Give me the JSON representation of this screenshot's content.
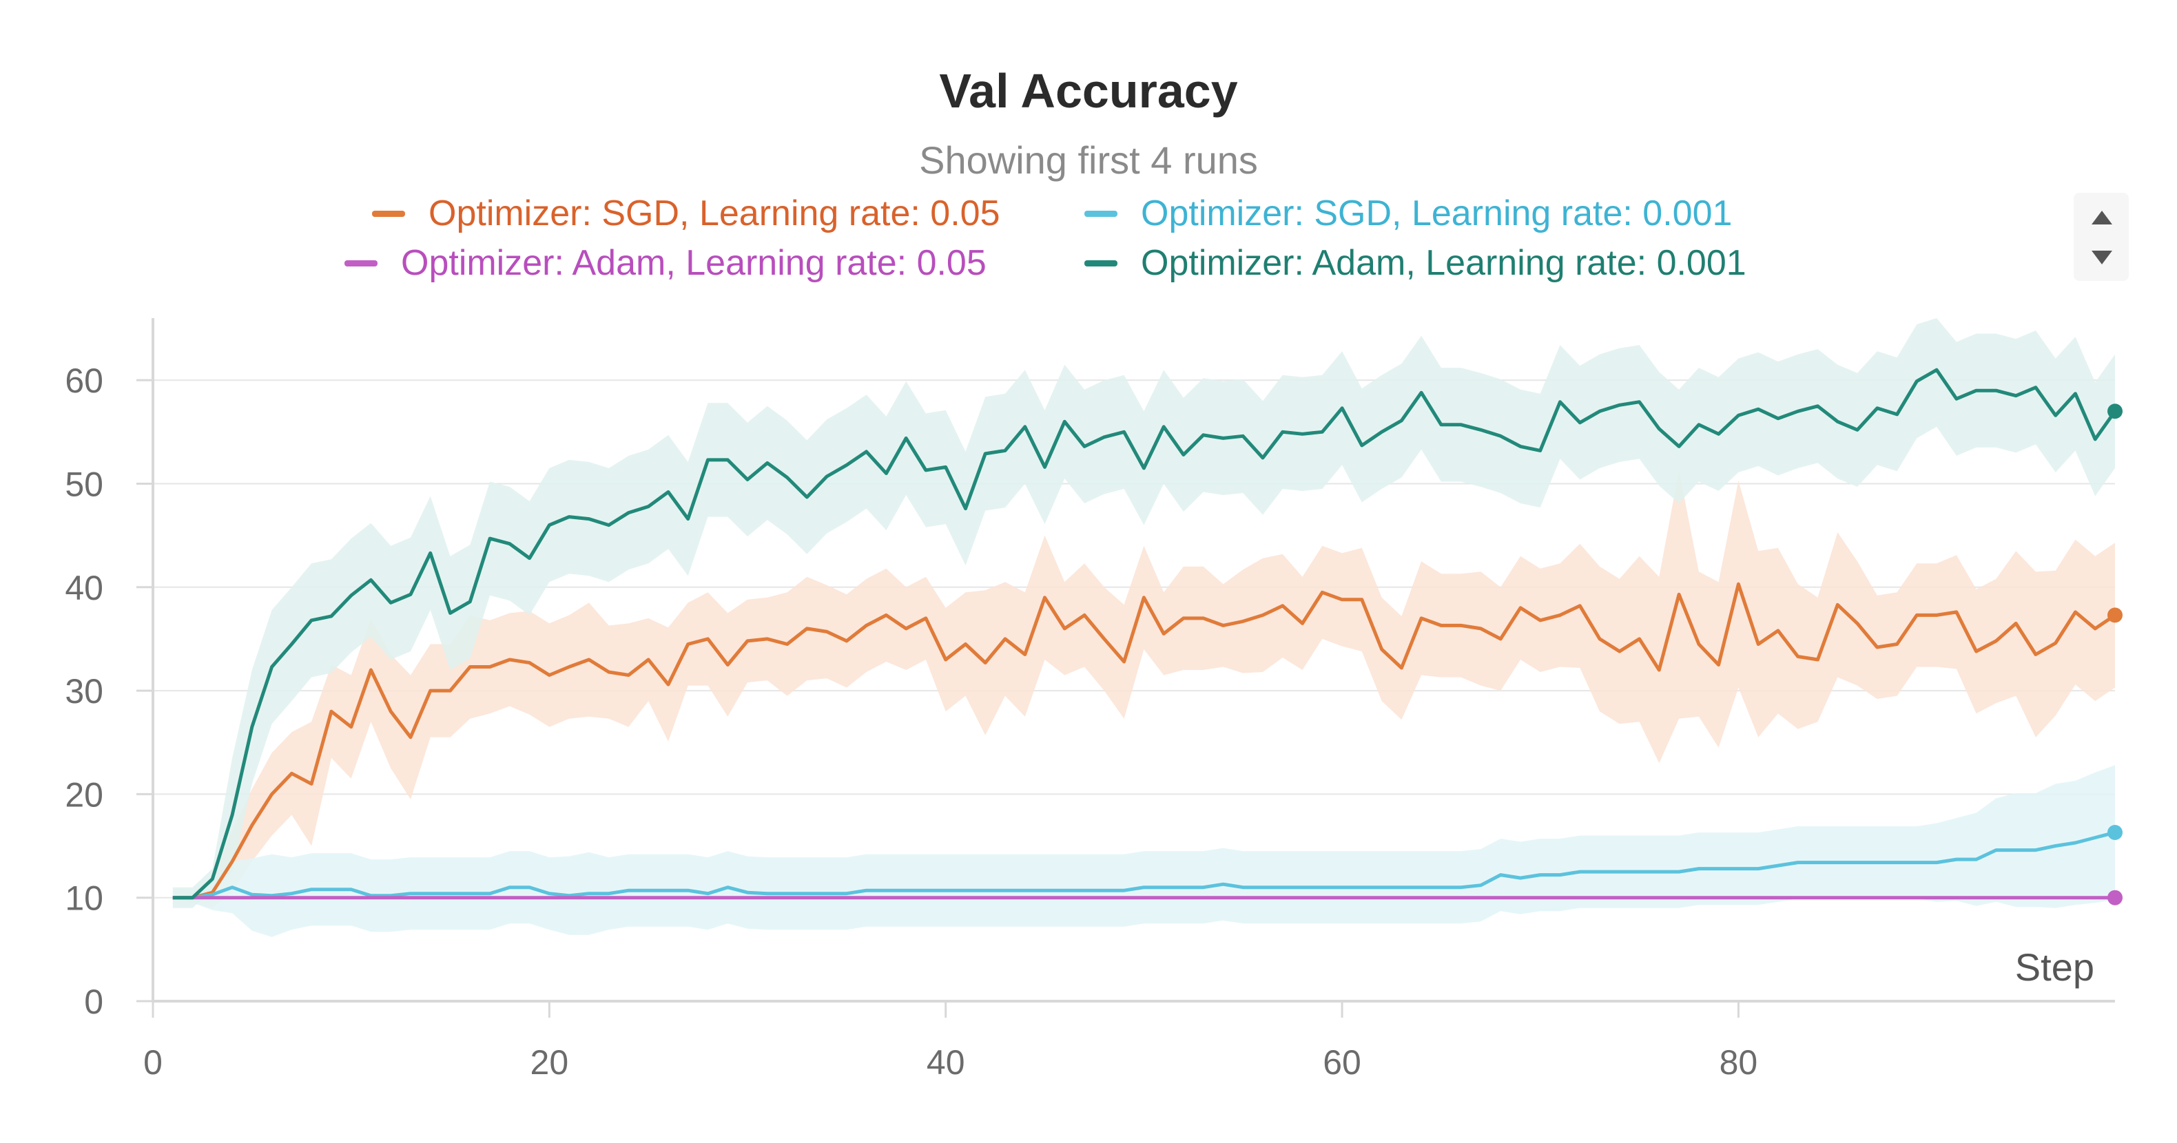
{
  "chart_data": {
    "type": "line",
    "title": "Val Accuracy",
    "subtitle": "Showing first 4 runs",
    "xlabel": "Step",
    "ylabel": "",
    "xlim": [
      0,
      99
    ],
    "ylim": [
      0,
      66
    ],
    "x_ticks": [
      0,
      20,
      40,
      60,
      80
    ],
    "y_ticks": [
      0,
      10,
      20,
      30,
      40,
      50,
      60
    ],
    "grid": true,
    "legend_position": "top",
    "x": [
      1,
      2,
      3,
      4,
      5,
      6,
      7,
      8,
      9,
      10,
      11,
      12,
      13,
      14,
      15,
      16,
      17,
      18,
      19,
      20,
      21,
      22,
      23,
      24,
      25,
      26,
      27,
      28,
      29,
      30,
      31,
      32,
      33,
      34,
      35,
      36,
      37,
      38,
      39,
      40,
      41,
      42,
      43,
      44,
      45,
      46,
      47,
      48,
      49,
      50,
      51,
      52,
      53,
      54,
      55,
      56,
      57,
      58,
      59,
      60,
      61,
      62,
      63,
      64,
      65,
      66,
      67,
      68,
      69,
      70,
      71,
      72,
      73,
      74,
      75,
      76,
      77,
      78,
      79,
      80,
      81,
      82,
      83,
      84,
      85,
      86,
      87,
      88,
      89,
      90,
      91,
      92,
      93,
      94,
      95,
      96,
      97,
      98,
      99
    ],
    "series": [
      {
        "name": "Optimizer: SGD, Learning rate: 0.05",
        "color": "#e07b39",
        "band_color": "#fbe3d5",
        "values": [
          10,
          10,
          10.5,
          13.5,
          17,
          20,
          22,
          21,
          28,
          26.5,
          32,
          28,
          25.5,
          30,
          30,
          32.3,
          32.3,
          33,
          32.7,
          31.5,
          32.3,
          33,
          31.8,
          31.5,
          33,
          30.6,
          34.5,
          35,
          32.5,
          34.8,
          35,
          34.5,
          36,
          35.7,
          34.8,
          36.3,
          37.3,
          36,
          37,
          33,
          34.5,
          32.7,
          35,
          33.5,
          39,
          36,
          37.3,
          35,
          32.8,
          39,
          35.5,
          37,
          37,
          36.3,
          36.7,
          37.3,
          38.2,
          36.5,
          39.5,
          38.8,
          38.8,
          34,
          32.2,
          37,
          36.3,
          36.3,
          36,
          35,
          38,
          36.8,
          37.3,
          38.2,
          35,
          33.8,
          35,
          32,
          39.3,
          34.5,
          32.5,
          40.3,
          34.5,
          35.8,
          33.3,
          33,
          38.3,
          36.5,
          34.2,
          34.5,
          37.3,
          37.3,
          37.6,
          33.8,
          34.8,
          36.5,
          33.5,
          34.6,
          37.6,
          36,
          37.3
        ],
        "band_width": [
          0,
          0.5,
          1.5,
          3,
          3.5,
          4,
          4,
          6,
          4.5,
          5,
          5,
          5.5,
          6,
          4.5,
          4.5,
          5,
          4.5,
          4.5,
          5,
          5,
          5,
          5.5,
          4.5,
          5,
          4,
          5.5,
          4,
          4.5,
          5,
          4,
          4,
          5,
          5,
          4.5,
          4.5,
          4.5,
          4.5,
          4,
          4,
          5,
          5,
          7,
          5.5,
          6,
          6,
          4.5,
          5,
          5,
          5.5,
          5,
          4,
          5,
          5,
          4,
          5,
          5.5,
          5,
          4.5,
          4.5,
          4.5,
          5,
          5,
          5,
          5.5,
          5,
          5,
          5.5,
          5,
          5,
          5,
          5,
          6,
          7,
          7,
          8,
          9,
          12,
          7,
          8,
          10,
          9,
          8,
          7,
          6,
          7,
          6,
          5,
          5,
          5,
          5,
          5.5,
          6,
          6,
          7,
          8,
          7,
          7,
          7,
          7
        ]
      },
      {
        "name": "Optimizer: SGD, Learning rate: 0.001",
        "color": "#5bc2dd",
        "band_color": "#e2f4f7",
        "values": [
          10,
          10,
          10.3,
          11,
          10.3,
          10.2,
          10.4,
          10.8,
          10.8,
          10.8,
          10.2,
          10.2,
          10.4,
          10.4,
          10.4,
          10.4,
          10.4,
          11,
          11,
          10.4,
          10.2,
          10.4,
          10.4,
          10.7,
          10.7,
          10.7,
          10.7,
          10.4,
          11,
          10.5,
          10.4,
          10.4,
          10.4,
          10.4,
          10.4,
          10.7,
          10.7,
          10.7,
          10.7,
          10.7,
          10.7,
          10.7,
          10.7,
          10.7,
          10.7,
          10.7,
          10.7,
          10.7,
          10.7,
          11,
          11,
          11,
          11,
          11.3,
          11,
          11,
          11,
          11,
          11,
          11,
          11,
          11,
          11,
          11,
          11,
          11,
          11.2,
          12.2,
          11.9,
          12.2,
          12.2,
          12.5,
          12.5,
          12.5,
          12.5,
          12.5,
          12.5,
          12.8,
          12.8,
          12.8,
          12.8,
          13.1,
          13.4,
          13.4,
          13.4,
          13.4,
          13.4,
          13.4,
          13.4,
          13.4,
          13.7,
          13.7,
          14.6,
          14.6,
          14.6,
          15,
          15.3,
          15.8,
          16.3
        ],
        "band_width": [
          0,
          0.5,
          1.5,
          2.5,
          3.5,
          4,
          3.5,
          3.5,
          3.5,
          3.5,
          3.5,
          3.5,
          3.5,
          3.5,
          3.5,
          3.5,
          3.5,
          3.5,
          3.5,
          3.5,
          3.8,
          4,
          3.5,
          3.5,
          3.5,
          3.5,
          3.5,
          3.5,
          3.5,
          3.5,
          3.5,
          3.5,
          3.5,
          3.5,
          3.5,
          3.5,
          3.5,
          3.5,
          3.5,
          3.5,
          3.5,
          3.5,
          3.5,
          3.5,
          3.5,
          3.5,
          3.5,
          3.5,
          3.5,
          3.5,
          3.5,
          3.5,
          3.5,
          3.5,
          3.5,
          3.5,
          3.5,
          3.5,
          3.5,
          3.5,
          3.5,
          3.5,
          3.5,
          3.5,
          3.5,
          3.5,
          3.5,
          3.5,
          3.5,
          3.5,
          3.5,
          3.5,
          3.5,
          3.5,
          3.5,
          3.5,
          3.5,
          3.5,
          3.5,
          3.5,
          3.5,
          3.5,
          3.5,
          3.5,
          3.5,
          3.5,
          3.5,
          3.5,
          3.5,
          3.8,
          4,
          4.5,
          5,
          5.5,
          5.5,
          6,
          6,
          6.3,
          6.5
        ]
      },
      {
        "name": "Optimizer: Adam, Learning rate: 0.05",
        "color": "#c15fc5",
        "band_color": "#f3dff4",
        "values": [
          10,
          10,
          10,
          10,
          10,
          10,
          10,
          10,
          10,
          10,
          10,
          10,
          10,
          10,
          10,
          10,
          10,
          10,
          10,
          10,
          10,
          10,
          10,
          10,
          10,
          10,
          10,
          10,
          10,
          10,
          10,
          10,
          10,
          10,
          10,
          10,
          10,
          10,
          10,
          10,
          10,
          10,
          10,
          10,
          10,
          10,
          10,
          10,
          10,
          10,
          10,
          10,
          10,
          10,
          10,
          10,
          10,
          10,
          10,
          10,
          10,
          10,
          10,
          10,
          10,
          10,
          10,
          10,
          10,
          10,
          10,
          10,
          10,
          10,
          10,
          10,
          10,
          10,
          10,
          10,
          10,
          10,
          10,
          10,
          10,
          10,
          10,
          10,
          10,
          10,
          10,
          10,
          10,
          10,
          10,
          10,
          10,
          10,
          10
        ],
        "band_width": [
          0,
          0,
          0,
          0,
          0,
          0,
          0,
          0,
          0,
          0,
          0,
          0,
          0,
          0,
          0,
          0,
          0,
          0,
          0,
          0,
          0,
          0,
          0,
          0,
          0,
          0,
          0,
          0,
          0,
          0,
          0,
          0,
          0,
          0,
          0,
          0,
          0,
          0,
          0,
          0,
          0,
          0,
          0,
          0,
          0,
          0,
          0,
          0,
          0,
          0,
          0,
          0,
          0,
          0,
          0,
          0,
          0,
          0,
          0,
          0,
          0,
          0,
          0,
          0,
          0,
          0,
          0,
          0,
          0,
          0,
          0,
          0,
          0,
          0,
          0,
          0,
          0,
          0,
          0,
          0,
          0,
          0,
          0,
          0,
          0,
          0,
          0,
          0,
          0,
          0,
          0,
          0,
          0,
          0,
          0,
          0,
          0,
          0,
          0
        ]
      },
      {
        "name": "Optimizer: Adam, Learning rate: 0.001",
        "color": "#22897a",
        "band_color": "#dff1ef",
        "values": [
          10,
          10,
          11.8,
          18,
          26.5,
          32.3,
          34.5,
          36.8,
          37.2,
          39.2,
          40.7,
          38.5,
          39.3,
          43.3,
          37.5,
          38.6,
          44.7,
          44.2,
          42.8,
          46,
          46.8,
          46.6,
          46,
          47.2,
          47.8,
          49.2,
          46.6,
          52.3,
          52.3,
          50.4,
          52,
          50.6,
          48.7,
          50.7,
          51.8,
          53.1,
          51,
          54.4,
          51.3,
          51.6,
          47.6,
          52.9,
          53.2,
          55.5,
          51.6,
          56,
          53.6,
          54.5,
          55,
          51.5,
          55.5,
          52.8,
          54.7,
          54.4,
          54.6,
          52.5,
          55,
          54.8,
          55,
          57.3,
          53.7,
          55,
          56.1,
          58.8,
          55.7,
          55.7,
          55.2,
          54.6,
          53.6,
          53.2,
          57.9,
          55.9,
          57,
          57.6,
          57.9,
          55.3,
          53.6,
          55.7,
          54.8,
          56.6,
          57.2,
          56.3,
          57,
          57.5,
          56,
          55.2,
          57.3,
          56.7,
          59.9,
          61,
          58.2,
          59,
          59,
          58.5,
          59.3,
          56.6,
          58.7,
          54.3,
          57
        ]
      }
    ]
  }
}
